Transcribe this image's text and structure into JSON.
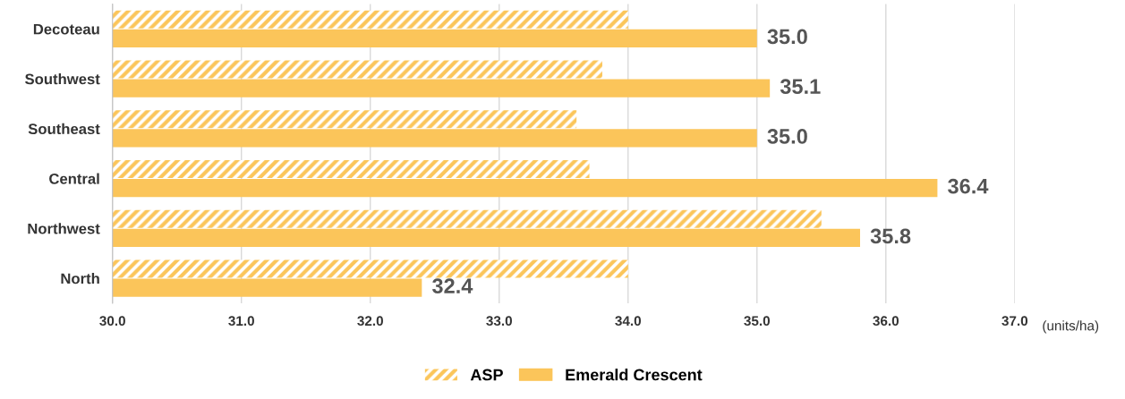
{
  "chart_data": {
    "type": "bar",
    "orientation": "horizontal",
    "xlabel": "(units/ha)",
    "categories": [
      "Decoteau",
      "Southwest",
      "Southeast",
      "Central",
      "Northwest",
      "North"
    ],
    "series": [
      {
        "name": "ASP",
        "color": "#fbc55a",
        "values": [
          34.0,
          33.8,
          33.6,
          33.7,
          35.5,
          34.0
        ]
      },
      {
        "name": "Emerald Crescent",
        "color": "#fbc55a",
        "values": [
          35.0,
          35.1,
          35.0,
          36.4,
          35.8,
          32.4
        ],
        "value_labels": [
          "35.0",
          "35.1",
          "35.0",
          "36.4",
          "35.8",
          "32.4"
        ]
      }
    ],
    "xlim": [
      30,
      37
    ],
    "xticks": [
      {
        "value": 30,
        "label": "30.0"
      },
      {
        "value": 31,
        "label": "31.0"
      },
      {
        "value": 32,
        "label": "32.0"
      },
      {
        "value": 33,
        "label": "33.0"
      },
      {
        "value": 34,
        "label": "34.0"
      },
      {
        "value": 35,
        "label": "35.0"
      },
      {
        "value": 36,
        "label": "36.0"
      },
      {
        "value": 37,
        "label": "37.0"
      }
    ],
    "grid": "x",
    "legend": "bottom"
  }
}
